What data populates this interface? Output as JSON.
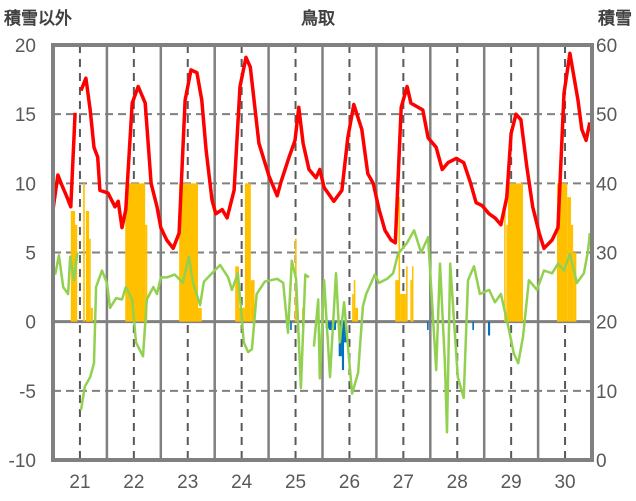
{
  "chart_data": {
    "type": "line",
    "title": "鳥取",
    "ylabel_left": "積雪以外",
    "ylabel_right": "積雪",
    "ylim_left": [
      -10,
      20
    ],
    "ylim_right": [
      0,
      60
    ],
    "xlim": [
      20.5,
      30.5
    ],
    "yticks_left": [
      "20",
      "15",
      "10",
      "5",
      "0",
      "-5",
      "-10"
    ],
    "yticks_right": [
      "60",
      "50",
      "40",
      "30",
      "20",
      "10",
      "0"
    ],
    "yticks_left_values": [
      20,
      15,
      10,
      5,
      0,
      -5,
      -10
    ],
    "xticks": [
      "21",
      "22",
      "23",
      "24",
      "25",
      "26",
      "27",
      "28",
      "29",
      "30"
    ],
    "xticks_values": [
      21,
      22,
      23,
      24,
      25,
      26,
      27,
      28,
      29,
      30
    ],
    "grid": true,
    "colors": {
      "temperature": "#ff0000",
      "green_series": "#92d050",
      "precip_bars": "#ffc000",
      "negative_bars": "#0070c0",
      "snow_depth": "#7030a0",
      "frame": "#808080"
    },
    "series": [
      {
        "name": "red",
        "axis": "left",
        "points": [
          [
            20.5,
            8.1
          ],
          [
            20.59,
            10.6
          ],
          [
            20.65,
            10.0
          ],
          [
            20.76,
            9.0
          ],
          [
            20.83,
            8.3
          ],
          [
            20.91,
            15.1
          ],
          null,
          [
            21.02,
            16.7
          ],
          [
            21.11,
            17.6
          ],
          [
            21.19,
            15.3
          ],
          [
            21.26,
            12.6
          ],
          [
            21.33,
            11.9
          ],
          [
            21.37,
            9.5
          ],
          [
            21.52,
            9.3
          ],
          [
            21.65,
            8.3
          ],
          [
            21.71,
            8.7
          ],
          [
            21.78,
            6.8
          ],
          [
            21.85,
            8.1
          ],
          [
            21.97,
            15.8
          ],
          [
            22.08,
            17.0
          ],
          [
            22.21,
            15.8
          ],
          [
            22.32,
            10.0
          ],
          [
            22.43,
            8.3
          ],
          [
            22.5,
            6.8
          ],
          [
            22.61,
            5.9
          ],
          [
            22.73,
            5.3
          ],
          [
            22.84,
            6.4
          ],
          [
            22.95,
            16.0
          ],
          [
            23.06,
            18.2
          ],
          [
            23.17,
            18.0
          ],
          [
            23.26,
            16.0
          ],
          [
            23.34,
            12.4
          ],
          [
            23.45,
            8.8
          ],
          [
            23.52,
            7.8
          ],
          [
            23.64,
            8.1
          ],
          [
            23.73,
            7.5
          ],
          [
            23.86,
            9.5
          ],
          [
            23.97,
            17.0
          ],
          [
            24.08,
            19.1
          ],
          [
            24.16,
            18.4
          ],
          [
            24.32,
            12.9
          ],
          [
            24.51,
            10.5
          ],
          [
            24.66,
            9.1
          ],
          [
            24.73,
            10.1
          ],
          [
            24.88,
            11.9
          ],
          [
            24.99,
            13.1
          ],
          [
            25.06,
            15.5
          ],
          [
            25.14,
            12.9
          ],
          [
            25.25,
            11.0
          ],
          [
            25.38,
            10.4
          ],
          [
            25.45,
            11.0
          ],
          [
            25.53,
            9.7
          ],
          [
            25.71,
            8.7
          ],
          [
            25.86,
            9.5
          ],
          [
            25.97,
            13.3
          ],
          [
            26.08,
            15.7
          ],
          [
            26.23,
            13.9
          ],
          [
            26.34,
            10.7
          ],
          [
            26.44,
            10.0
          ],
          [
            26.55,
            8.1
          ],
          [
            26.66,
            6.6
          ],
          [
            26.77,
            5.9
          ],
          [
            26.85,
            5.7
          ],
          [
            26.96,
            15.5
          ],
          [
            27.07,
            17.0
          ],
          [
            27.14,
            15.8
          ],
          [
            27.36,
            15.3
          ],
          [
            27.46,
            13.3
          ],
          [
            27.61,
            12.6
          ],
          [
            27.72,
            11.0
          ],
          [
            27.83,
            11.5
          ],
          [
            27.98,
            11.8
          ],
          [
            28.12,
            11.5
          ],
          [
            28.24,
            10.1
          ],
          [
            28.35,
            8.6
          ],
          [
            28.46,
            8.4
          ],
          [
            28.59,
            7.8
          ],
          [
            28.7,
            7.5
          ],
          [
            28.81,
            7.0
          ],
          [
            28.92,
            9.0
          ],
          [
            29.0,
            13.6
          ],
          [
            29.09,
            15.0
          ],
          [
            29.18,
            14.6
          ],
          [
            29.29,
            11.2
          ],
          [
            29.4,
            8.3
          ],
          [
            29.52,
            6.4
          ],
          [
            29.61,
            5.3
          ],
          [
            29.76,
            5.9
          ],
          [
            29.87,
            6.8
          ],
          [
            29.98,
            16.5
          ],
          [
            30.09,
            19.4
          ],
          [
            30.24,
            16.0
          ],
          [
            30.31,
            13.9
          ],
          [
            30.39,
            13.1
          ],
          [
            30.46,
            14.4
          ]
        ]
      },
      {
        "name": "green",
        "axis": "left",
        "points": [
          [
            20.54,
            3.4
          ],
          [
            20.61,
            4.8
          ],
          [
            20.69,
            2.5
          ],
          [
            20.78,
            2.0
          ],
          [
            20.82,
            4.7
          ],
          [
            20.89,
            3.0
          ],
          [
            20.95,
            5.0
          ],
          null,
          [
            21.02,
            -6.4
          ],
          [
            21.09,
            -4.7
          ],
          [
            21.19,
            -4.0
          ],
          [
            21.26,
            -3.0
          ],
          [
            21.3,
            2.5
          ],
          [
            21.41,
            3.7
          ],
          [
            21.5,
            2.8
          ],
          [
            21.56,
            1.0
          ],
          [
            21.67,
            1.7
          ],
          [
            21.78,
            1.6
          ],
          [
            21.85,
            2.5
          ],
          [
            21.97,
            1.6
          ],
          [
            22.04,
            -1.5
          ],
          [
            22.17,
            -2.5
          ],
          [
            22.24,
            1.6
          ],
          [
            22.36,
            2.5
          ],
          [
            22.43,
            2.0
          ],
          [
            22.5,
            3.2
          ],
          [
            22.61,
            3.2
          ],
          [
            22.76,
            3.4
          ],
          [
            22.91,
            2.8
          ],
          [
            23.02,
            4.7
          ],
          [
            23.1,
            2.8
          ],
          [
            23.23,
            1.2
          ],
          [
            23.3,
            2.9
          ],
          [
            23.45,
            3.5
          ],
          [
            23.6,
            4.1
          ],
          [
            23.75,
            3.2
          ],
          [
            23.82,
            2.3
          ],
          [
            23.93,
            3.5
          ],
          [
            24.04,
            -1.5
          ],
          [
            24.12,
            -2.2
          ],
          [
            24.19,
            -2.0
          ],
          [
            24.28,
            2.0
          ],
          [
            24.43,
            2.9
          ],
          [
            24.54,
            3.0
          ],
          [
            24.66,
            3.1
          ],
          [
            24.77,
            2.8
          ],
          [
            24.86,
            -0.8
          ],
          [
            24.93,
            4.4
          ],
          [
            25.01,
            3.1
          ],
          [
            25.1,
            -4.8
          ],
          [
            25.18,
            3.4
          ],
          [
            25.25,
            3.2
          ],
          null,
          [
            25.34,
            -1.8
          ],
          [
            25.42,
            1.6
          ],
          [
            25.45,
            -4.1
          ],
          [
            25.53,
            3.0
          ],
          [
            25.64,
            -4.0
          ],
          [
            25.75,
            3.5
          ],
          [
            25.82,
            -1.5
          ],
          [
            25.9,
            1.4
          ],
          [
            26.05,
            -5.2
          ],
          [
            26.16,
            -3.7
          ],
          [
            26.25,
            1.1
          ],
          [
            26.31,
            2.0
          ],
          [
            26.47,
            3.4
          ],
          [
            26.55,
            2.8
          ],
          [
            26.7,
            3.1
          ],
          [
            26.81,
            3.5
          ],
          [
            26.9,
            4.9
          ],
          [
            27.07,
            5.7
          ],
          [
            27.2,
            6.6
          ],
          [
            27.33,
            5.0
          ],
          [
            27.46,
            6.1
          ],
          [
            27.61,
            -3.5
          ],
          [
            27.68,
            4.2
          ],
          [
            27.77,
            -3.0
          ],
          [
            27.81,
            -8.0
          ],
          [
            27.87,
            4.2
          ],
          [
            28.01,
            -4.0
          ],
          [
            28.12,
            -5.5
          ],
          [
            28.2,
            3.0
          ],
          [
            28.31,
            4.0
          ],
          [
            28.42,
            2.0
          ],
          [
            28.59,
            2.3
          ],
          [
            28.7,
            1.4
          ],
          [
            28.81,
            2.0
          ],
          [
            28.96,
            -0.6
          ],
          [
            29.05,
            -2.3
          ],
          [
            29.13,
            -3.0
          ],
          [
            29.22,
            -1.1
          ],
          [
            29.33,
            3.0
          ],
          [
            29.48,
            2.3
          ],
          [
            29.61,
            3.7
          ],
          [
            29.76,
            3.5
          ],
          [
            29.87,
            4.2
          ],
          [
            29.98,
            3.7
          ],
          [
            30.09,
            4.9
          ],
          [
            30.22,
            2.8
          ],
          [
            30.35,
            3.5
          ],
          [
            30.43,
            5.2
          ],
          [
            30.46,
            6.4
          ]
        ]
      },
      {
        "name": "snow_depth",
        "axis": "right",
        "points": [
          [
            20.5,
            0
          ],
          [
            30.5,
            0
          ]
        ]
      }
    ],
    "bars_orange": [
      [
        20.83,
        20.91,
        8
      ],
      [
        20.91,
        20.95,
        7
      ],
      [
        21.06,
        21.09,
        10
      ],
      [
        21.11,
        21.17,
        8
      ],
      [
        21.17,
        21.2,
        6
      ],
      [
        21.2,
        21.24,
        1
      ],
      [
        21.84,
        22.21,
        10
      ],
      [
        22.21,
        22.25,
        7
      ],
      [
        22.84,
        23.19,
        10
      ],
      [
        23.19,
        23.26,
        1
      ],
      [
        23.88,
        23.95,
        4
      ],
      [
        23.95,
        24.06,
        1
      ],
      [
        24.06,
        24.17,
        10
      ],
      [
        24.17,
        24.24,
        3
      ],
      [
        24.99,
        25.02,
        6
      ],
      [
        25.12,
        25.15,
        1
      ],
      [
        26.05,
        26.08,
        2
      ],
      [
        26.08,
        26.11,
        3
      ],
      [
        26.11,
        26.16,
        1
      ],
      [
        26.85,
        26.91,
        3
      ],
      [
        26.91,
        26.94,
        9
      ],
      [
        26.94,
        27.05,
        2
      ],
      [
        27.05,
        27.08,
        4
      ],
      [
        27.13,
        27.16,
        3
      ],
      [
        27.16,
        27.18,
        4
      ],
      [
        28.87,
        28.89,
        8
      ],
      [
        28.91,
        28.94,
        7
      ],
      [
        28.94,
        29.22,
        10
      ],
      [
        29.85,
        30.04,
        10
      ],
      [
        30.04,
        30.11,
        9
      ],
      [
        30.11,
        30.15,
        7
      ],
      [
        30.15,
        30.21,
        5
      ]
    ],
    "bars_blue": [
      [
        24.9,
        24.93,
        -0.6
      ],
      [
        25.12,
        25.15,
        -0.6
      ],
      [
        25.56,
        25.62,
        -0.5
      ],
      [
        25.62,
        25.75,
        -0.6
      ],
      [
        25.8,
        25.86,
        -2.5
      ],
      [
        25.86,
        25.9,
        -3.5
      ],
      [
        25.9,
        25.95,
        -1.5
      ],
      [
        27.44,
        27.47,
        -0.6
      ],
      [
        28.28,
        28.31,
        -0.6
      ],
      [
        28.57,
        28.61,
        -1.0
      ]
    ]
  }
}
